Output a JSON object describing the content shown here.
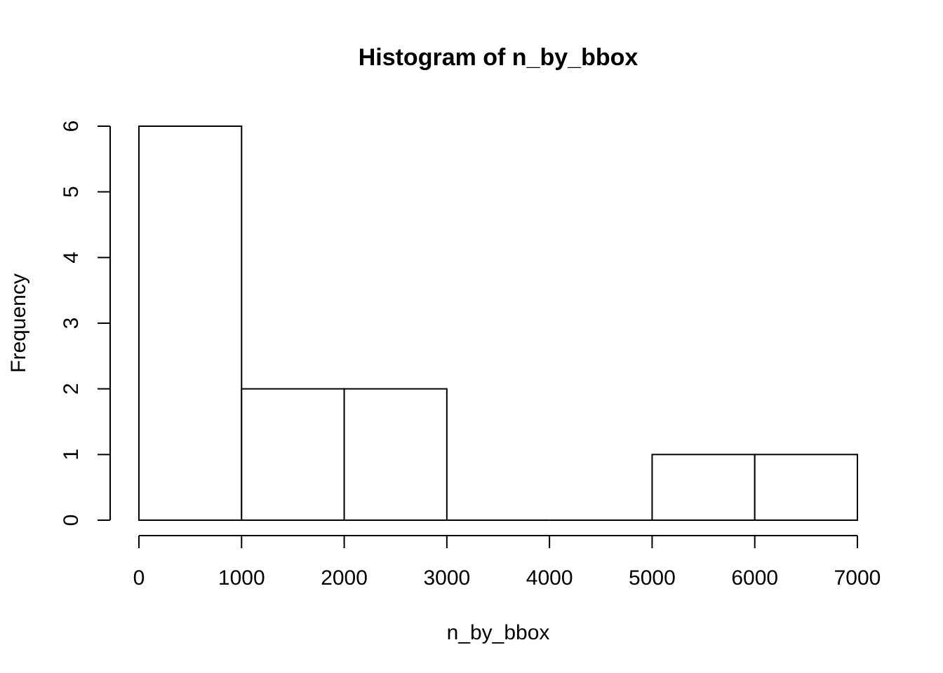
{
  "chart_data": {
    "type": "bar",
    "title": "Histogram of n_by_bbox",
    "xlabel": "n_by_bbox",
    "ylabel": "Frequency",
    "bins": [
      {
        "from": 0,
        "to": 1000,
        "count": 6
      },
      {
        "from": 1000,
        "to": 2000,
        "count": 2
      },
      {
        "from": 2000,
        "to": 3000,
        "count": 2
      },
      {
        "from": 3000,
        "to": 4000,
        "count": 0
      },
      {
        "from": 4000,
        "to": 5000,
        "count": 0
      },
      {
        "from": 5000,
        "to": 6000,
        "count": 1
      },
      {
        "from": 6000,
        "to": 7000,
        "count": 1
      }
    ],
    "xlim": [
      0,
      7000
    ],
    "ylim": [
      0,
      6
    ],
    "x_ticks": [
      "0",
      "1000",
      "2000",
      "3000",
      "4000",
      "5000",
      "6000",
      "7000"
    ],
    "y_ticks": [
      "0",
      "1",
      "2",
      "3",
      "4",
      "5",
      "6"
    ],
    "grid": false,
    "colors": {
      "bar_fill": "#ffffff",
      "bar_stroke": "#000000",
      "axis": "#000000"
    }
  }
}
